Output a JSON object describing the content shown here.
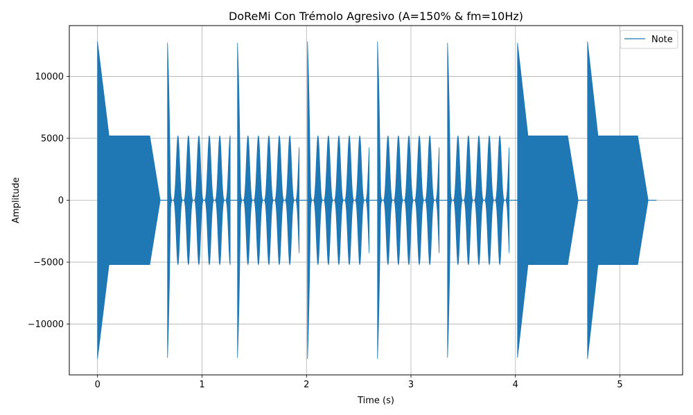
{
  "chart_data": {
    "type": "line",
    "title": "DoReMi Con Trémolo Agresivo (A=150% & fm=10Hz)",
    "xlabel": "Time (s)",
    "ylabel": "Amplitude",
    "xlim": [
      -0.27,
      5.6
    ],
    "ylim": [
      -14100,
      14100
    ],
    "xticks": [
      0,
      1,
      2,
      3,
      4,
      5
    ],
    "yticks": [
      -10000,
      -5000,
      0,
      5000,
      10000
    ],
    "xtick_labels": [
      "0",
      "1",
      "2",
      "3",
      "4",
      "5"
    ],
    "ytick_labels": [
      "−10000",
      "−5000",
      "0",
      "5000",
      "10000"
    ],
    "grid": true,
    "legend_position": "top-right",
    "line_color": "#1f77b4",
    "series": [
      {
        "name": "Note",
        "envelope_segments": [
          {
            "shape": "plateau",
            "start": 0.0,
            "end": 0.5,
            "attack_start": 0.0,
            "attack_peak": 12800,
            "attack_decay_end": 0.11,
            "plateau_amplitude": 5200,
            "tail_end": 0.6
          },
          {
            "shape": "tremolo",
            "start": 0.67,
            "end": 1.27,
            "attack_start": 0.67,
            "attack_peak": 12700,
            "attack_decay_end": 0.7,
            "tremolo_max": 5200,
            "tremolo_min": 0,
            "tremolo_hz": 10,
            "tail_end": 1.27
          },
          {
            "shape": "tremolo",
            "start": 1.34,
            "end": 1.93,
            "attack_start": 1.34,
            "attack_peak": 12700,
            "attack_decay_end": 1.37,
            "tremolo_max": 5200,
            "tremolo_min": 0,
            "tremolo_hz": 10,
            "tail_end": 1.93
          },
          {
            "shape": "tremolo",
            "start": 2.01,
            "end": 2.6,
            "attack_start": 2.01,
            "attack_peak": 12800,
            "attack_decay_end": 2.04,
            "tremolo_max": 5200,
            "tremolo_min": 0,
            "tremolo_hz": 10,
            "tail_end": 2.6
          },
          {
            "shape": "tremolo",
            "start": 2.68,
            "end": 3.27,
            "attack_start": 2.68,
            "attack_peak": 12800,
            "attack_decay_end": 2.71,
            "tremolo_max": 5200,
            "tremolo_min": 0,
            "tremolo_hz": 10,
            "tail_end": 3.27
          },
          {
            "shape": "tremolo",
            "start": 3.35,
            "end": 3.94,
            "attack_start": 3.35,
            "attack_peak": 12700,
            "attack_decay_end": 3.38,
            "tremolo_max": 5200,
            "tremolo_min": 0,
            "tremolo_hz": 10,
            "tail_end": 3.94
          },
          {
            "shape": "plateau",
            "start": 4.02,
            "end": 4.5,
            "attack_start": 4.02,
            "attack_peak": 12700,
            "attack_decay_end": 4.12,
            "plateau_amplitude": 5200,
            "tail_end": 4.6
          },
          {
            "shape": "plateau",
            "start": 4.69,
            "end": 5.17,
            "attack_start": 4.69,
            "attack_peak": 12800,
            "attack_decay_end": 4.79,
            "plateau_amplitude": 5200,
            "tail_end": 5.27
          }
        ],
        "trailing_flat_end": 5.35
      }
    ]
  }
}
